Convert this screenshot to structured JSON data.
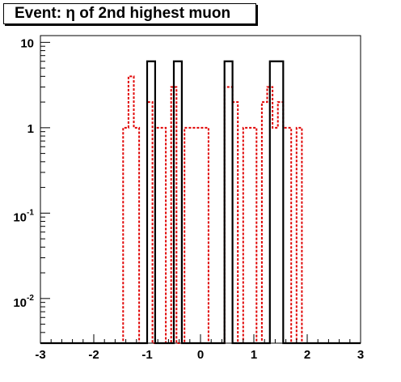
{
  "chart_data": {
    "type": "histogram",
    "title": "Event: η of 2nd highest muon",
    "xlabel": "",
    "ylabel": "",
    "xlim": [
      -3,
      3
    ],
    "ylim": [
      0.003,
      12
    ],
    "log_y": true,
    "grid": false,
    "x_ticks": [
      {
        "value": -3,
        "label": "-3"
      },
      {
        "value": -2,
        "label": "-2"
      },
      {
        "value": -1,
        "label": "-1"
      },
      {
        "value": 0,
        "label": "0"
      },
      {
        "value": 1,
        "label": "1"
      },
      {
        "value": 2,
        "label": "2"
      },
      {
        "value": 3,
        "label": "3"
      }
    ],
    "y_ticks": [
      {
        "value": 10,
        "base": "10",
        "exp": ""
      },
      {
        "value": 1,
        "base": "1",
        "exp": ""
      },
      {
        "value": 0.1,
        "base": "10",
        "exp": "-1"
      },
      {
        "value": 0.01,
        "base": "10",
        "exp": "-2"
      }
    ],
    "series": [
      {
        "style": "solid",
        "color": "#000000",
        "bins": [
          {
            "x0": -1.0,
            "x1": -0.85,
            "y": 6
          },
          {
            "x0": -0.5,
            "x1": -0.35,
            "y": 6
          },
          {
            "x0": 0.45,
            "x1": 0.6,
            "y": 6
          },
          {
            "x0": 1.3,
            "x1": 1.55,
            "y": 6
          }
        ]
      },
      {
        "style": "dashed",
        "color": "#e00000",
        "bins": [
          {
            "x0": -1.45,
            "x1": -1.35,
            "y": 1
          },
          {
            "x0": -1.35,
            "x1": -1.25,
            "y": 4
          },
          {
            "x0": -1.25,
            "x1": -1.15,
            "y": 1
          },
          {
            "x0": -1.0,
            "x1": -0.9,
            "y": 2
          },
          {
            "x0": -0.85,
            "x1": -0.65,
            "y": 1
          },
          {
            "x0": -0.55,
            "x1": -0.45,
            "y": 3
          },
          {
            "x0": -0.3,
            "x1": 0.15,
            "y": 1
          },
          {
            "x0": 0.45,
            "x1": 0.6,
            "y": 3
          },
          {
            "x0": 0.6,
            "x1": 0.7,
            "y": 2
          },
          {
            "x0": 0.8,
            "x1": 1.05,
            "y": 1
          },
          {
            "x0": 1.15,
            "x1": 1.25,
            "y": 2
          },
          {
            "x0": 1.25,
            "x1": 1.35,
            "y": 3
          },
          {
            "x0": 1.35,
            "x1": 1.45,
            "y": 1
          },
          {
            "x0": 1.45,
            "x1": 1.55,
            "y": 2
          },
          {
            "x0": 1.55,
            "x1": 1.7,
            "y": 1
          },
          {
            "x0": 1.8,
            "x1": 1.9,
            "y": 1
          }
        ]
      }
    ]
  }
}
